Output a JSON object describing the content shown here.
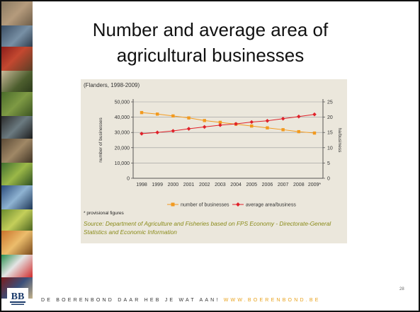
{
  "slide": {
    "title_line1": "Number and average area of",
    "title_line2": "agricultural businesses",
    "figure_subtitle": "(Flanders, 1998-2009)",
    "note": "* provisional figures",
    "source": "Source: Department of Agriculture and Fisheries based on FPS Economy - Directorate-General Statistics and Economic Information",
    "footer_slogan": "DE BOERENBOND DAAR HEB JE WAT AAN!",
    "footer_url": "WWW.BOERENBOND.BE",
    "page_number": "28",
    "logo_text": "BB"
  },
  "colors": {
    "businesses": "#f29a1f",
    "area": "#e0222a",
    "figure_bg": "#ebe7dc",
    "source_text": "#8a8b1a",
    "footer_url": "#e8a11a"
  },
  "chart_data": {
    "type": "line",
    "title": "",
    "x": [
      "1998",
      "1999",
      "2000",
      "2001",
      "2002",
      "2003",
      "2004",
      "2005",
      "2006",
      "2007",
      "2008",
      "2009*"
    ],
    "y_left_label": "number of businesses",
    "y_right_label": "ha/business",
    "y_left_ticks": [
      "0",
      "10,000",
      "20,000",
      "30,000",
      "40,000",
      "50,000"
    ],
    "y_right_ticks": [
      "0",
      "5",
      "10",
      "15",
      "20",
      "25"
    ],
    "y_left_range": [
      0,
      50000
    ],
    "y_right_range": [
      0,
      25
    ],
    "grid": true,
    "legend_position": "bottom",
    "series": [
      {
        "name": "number of businesses",
        "axis": "left",
        "marker": "square",
        "color": "#f29a1f",
        "values": [
          43000,
          42000,
          40800,
          39500,
          37800,
          36600,
          35400,
          34200,
          33000,
          31800,
          30500,
          29600
        ]
      },
      {
        "name": "average area/business",
        "axis": "right",
        "marker": "diamond",
        "color": "#e0222a",
        "values": [
          14.6,
          15.0,
          15.5,
          16.2,
          16.8,
          17.4,
          17.8,
          18.4,
          18.8,
          19.5,
          20.2,
          20.9
        ]
      }
    ]
  }
}
